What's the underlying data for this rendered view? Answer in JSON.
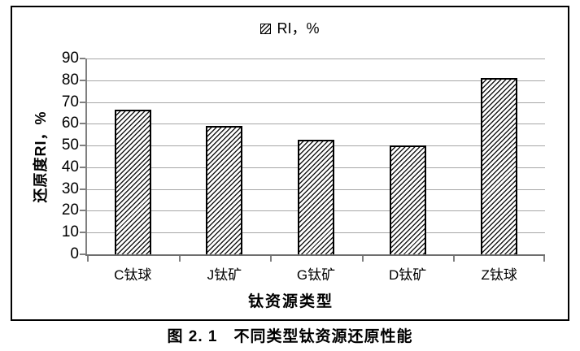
{
  "figure": {
    "caption": "图 2. 1　不同类型钛资源还原性能"
  },
  "chart_data": {
    "type": "bar",
    "title": "图 2.1 不同类型钛资源还原性能",
    "categories": [
      "C钛球",
      "J钛矿",
      "G钛矿",
      "D钛矿",
      "Z钛球"
    ],
    "values": [
      66.5,
      59,
      52.5,
      50,
      81
    ],
    "series_name": "RI，%",
    "legend": {
      "label": "RI，%",
      "position": "top-center",
      "marker": "hatched-square"
    },
    "xlabel": "钛资源类型",
    "ylabel": "还原度RI，%",
    "ylim": [
      0,
      90
    ],
    "yticks": [
      0,
      10,
      20,
      30,
      40,
      50,
      60,
      70,
      80,
      90
    ],
    "grid": "horizontal",
    "bar_fill": "diagonal-hatch",
    "colors": {
      "bar_hatch": "#1a1a1a",
      "bar_border": "#000000",
      "gridline": "#a6a6a6",
      "axis": "#808080",
      "text": "#000000",
      "frame_border": "#000000",
      "background": "#ffffff"
    }
  }
}
